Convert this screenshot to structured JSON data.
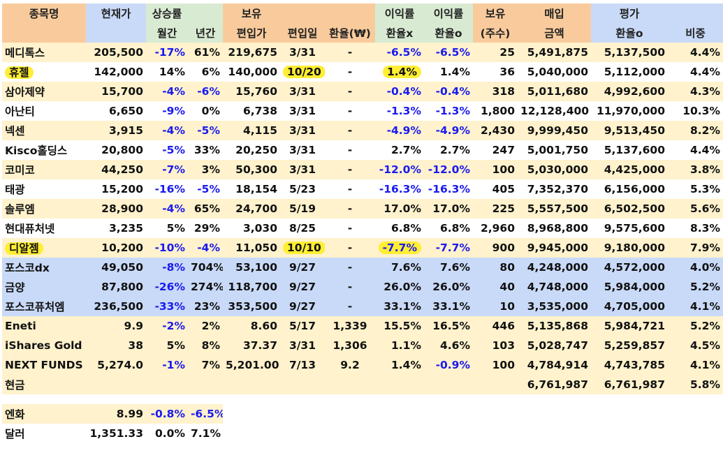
{
  "header_row1": [
    "종목명",
    "현재가",
    "상승률",
    "",
    "보유",
    "",
    "",
    "이익률",
    "이익률",
    "보유",
    "매입",
    "평가",
    ""
  ],
  "header_row2": [
    "",
    "",
    "월간",
    "년간",
    "편입가",
    "편입일",
    "환율(₩)",
    "환율x",
    "환율o",
    "(주수)",
    "금액",
    "환율o",
    "비중"
  ],
  "header_colors": [
    "#f9cb9c",
    "#c9daf8",
    "#d9ead3",
    "#d9ead3",
    "#f9cb9c",
    "#f9cb9c",
    "#f9cb9c",
    "#d9ead3",
    "#d9ead3",
    "#f9cb9c",
    "#f9cb9c",
    "#c9daf8",
    "#c9daf8"
  ],
  "rows": [
    {
      "style": "cream",
      "cells": [
        "메디톡스",
        "205,500",
        "-17%",
        "61%",
        "219,675",
        "3/31",
        "-",
        "-6.5%",
        "-6.5%",
        "25",
        "5,491,875",
        "5,137,500",
        "4.4%"
      ]
    },
    {
      "style": "white",
      "cells": [
        "휴젤",
        "142,000",
        "14%",
        "6%",
        "140,000",
        "10/20",
        "-",
        "1.4%",
        "1.4%",
        "36",
        "5,040,000",
        "5,112,000",
        "4.4%"
      ],
      "hl": [
        0,
        5,
        7
      ]
    },
    {
      "style": "cream",
      "cells": [
        "삼아제약",
        "15,700",
        "-4%",
        "-6%",
        "15,760",
        "3/31",
        "-",
        "-0.4%",
        "-0.4%",
        "318",
        "5,011,680",
        "4,992,600",
        "4.3%"
      ]
    },
    {
      "style": "white",
      "cells": [
        "아난티",
        "6,650",
        "-9%",
        "0%",
        "6,738",
        "3/31",
        "-",
        "-1.3%",
        "-1.3%",
        "1,800",
        "12,128,400",
        "11,970,000",
        "10.3%"
      ]
    },
    {
      "style": "cream",
      "cells": [
        "넥센",
        "3,915",
        "-4%",
        "-5%",
        "4,115",
        "3/31",
        "-",
        "-4.9%",
        "-4.9%",
        "2,430",
        "9,999,450",
        "9,513,450",
        "8.2%"
      ]
    },
    {
      "style": "white",
      "cells": [
        "Kisco홀딩스",
        "20,800",
        "-5%",
        "33%",
        "20,250",
        "3/31",
        "-",
        "2.7%",
        "2.7%",
        "247",
        "5,001,750",
        "5,137,600",
        "4.4%"
      ]
    },
    {
      "style": "cream",
      "cells": [
        "코미코",
        "44,250",
        "-7%",
        "3%",
        "50,300",
        "3/31",
        "-",
        "-12.0%",
        "-12.0%",
        "100",
        "5,030,000",
        "4,425,000",
        "3.8%"
      ]
    },
    {
      "style": "white",
      "cells": [
        "태광",
        "15,200",
        "-16%",
        "-5%",
        "18,154",
        "5/23",
        "-",
        "-16.3%",
        "-16.3%",
        "405",
        "7,352,370",
        "6,156,000",
        "5.3%"
      ]
    },
    {
      "style": "cream",
      "cells": [
        "솔루엠",
        "28,900",
        "-4%",
        "65%",
        "24,700",
        "5/19",
        "-",
        "17.0%",
        "17.0%",
        "225",
        "5,557,500",
        "6,502,500",
        "5.6%"
      ]
    },
    {
      "style": "white",
      "cells": [
        "현대퓨처넷",
        "3,235",
        "5%",
        "29%",
        "3,030",
        "8/25",
        "-",
        "6.8%",
        "6.8%",
        "2,960",
        "8,968,800",
        "9,575,600",
        "8.3%"
      ]
    },
    {
      "style": "cream",
      "cells": [
        "디알젬",
        "10,200",
        "-10%",
        "-4%",
        "11,050",
        "10/10",
        "-",
        "-7.7%",
        "-7.7%",
        "900",
        "9,945,000",
        "9,180,000",
        "7.9%"
      ],
      "hl": [
        0,
        5,
        7
      ]
    },
    {
      "style": "blue",
      "cells": [
        "포스코dx",
        "49,050",
        "-8%",
        "704%",
        "53,100",
        "9/27",
        "-",
        "7.6%",
        "7.6%",
        "80",
        "4,248,000",
        "4,572,000",
        "4.0%"
      ]
    },
    {
      "style": "blue",
      "cells": [
        "금양",
        "87,800",
        "-26%",
        "274%",
        "118,700",
        "9/27",
        "-",
        "26.0%",
        "26.0%",
        "40",
        "4,748,000",
        "5,984,000",
        "5.2%"
      ]
    },
    {
      "style": "blue",
      "cells": [
        "포스코퓨처엠",
        "236,500",
        "-33%",
        "23%",
        "353,500",
        "9/27",
        "-",
        "33.1%",
        "33.1%",
        "10",
        "3,535,000",
        "4,705,000",
        "4.1%"
      ]
    },
    {
      "style": "cream",
      "cells": [
        "Eneti",
        "9.9",
        "-2%",
        "2%",
        "8.60",
        "5/17",
        "1,339",
        "15.5%",
        "16.5%",
        "446",
        "5,135,868",
        "5,984,721",
        "5.2%"
      ]
    },
    {
      "style": "cream",
      "cells": [
        "iShares Gold T",
        "38",
        "5%",
        "8%",
        "37.37",
        "3/31",
        "1,306",
        "1.1%",
        "4.6%",
        "103",
        "5,028,747",
        "5,259,857",
        "4.5%"
      ]
    },
    {
      "style": "cream",
      "cells": [
        "NEXT FUNDS I",
        "5,274.0",
        "-1%",
        "7%",
        "5,201.00",
        "7/13",
        "9.2",
        "1.4%",
        "-0.9%",
        "100",
        "4,784,914",
        "4,743,785",
        "4.1%"
      ]
    },
    {
      "style": "cream",
      "cells": [
        "현금",
        "",
        "",
        "",
        "",
        "",
        "",
        "",
        "",
        "",
        "6,761,987",
        "6,761,987",
        "5.8%"
      ]
    }
  ],
  "fx_rows": [
    {
      "style": "cream",
      "cells": [
        "엔화",
        "8.99",
        "-0.8%",
        "-6.5%"
      ]
    },
    {
      "style": "white",
      "cells": [
        "달러",
        "1,351.33",
        "0.0%",
        "7.1%"
      ]
    }
  ],
  "colors": {
    "cream": "#fff2cc",
    "blue": "#c9daf8",
    "negative": "#1a1af0",
    "highlight": "#ffee33"
  }
}
